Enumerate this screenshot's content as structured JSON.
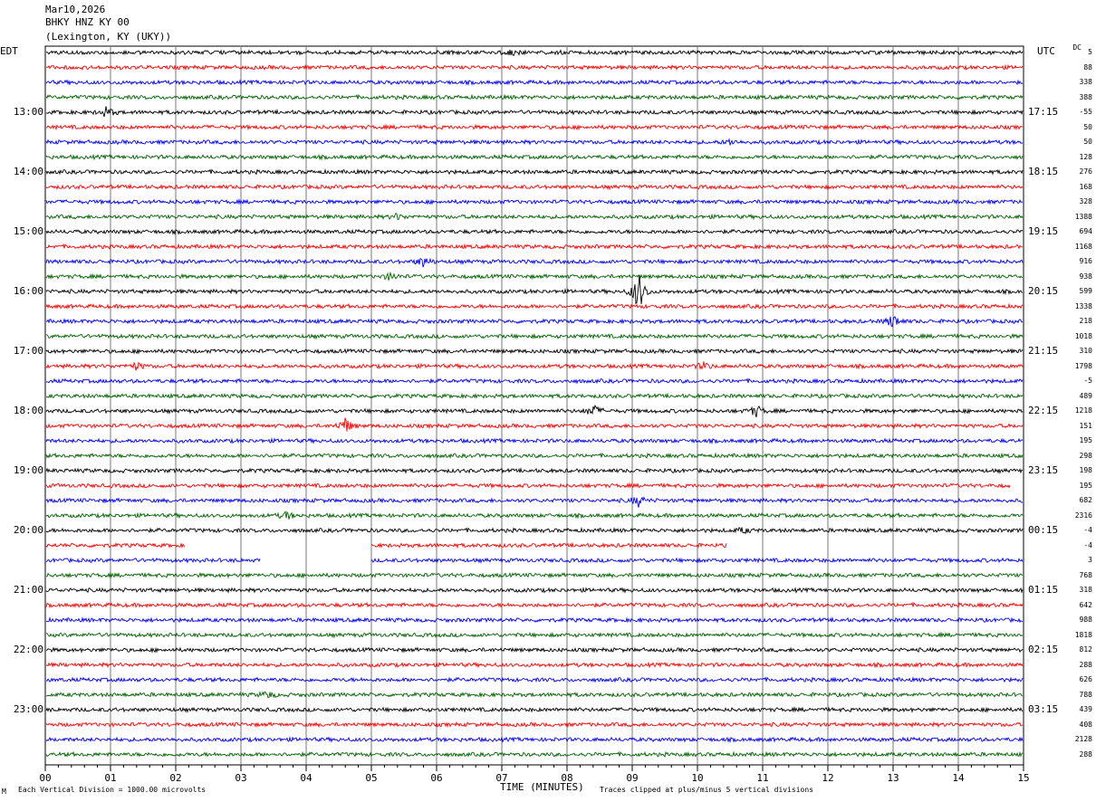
{
  "header": {
    "date": "Mar10,2026",
    "station": "BHKY HNZ KY 00",
    "location": "(Lexington, KY (UKY))"
  },
  "left_tz": "EDT",
  "right_tz": "UTC",
  "dc_label": "DC",
  "left_hour_labels": [
    "13:00",
    "14:00",
    "15:00",
    "16:00",
    "17:00",
    "18:00",
    "19:00",
    "20:00",
    "21:00",
    "22:00",
    "23:00"
  ],
  "right_hour_labels": [
    "17:15",
    "18:15",
    "19:15",
    "20:15",
    "21:15",
    "22:15",
    "23:15",
    "00:15",
    "01:15",
    "02:15",
    "03:15"
  ],
  "dc_offsets": [
    "5",
    "88",
    "338",
    "388",
    "-55",
    "50",
    "50",
    "128",
    "276",
    "168",
    "328",
    "1388",
    "694",
    "1168",
    "916",
    "938",
    "599",
    "1338",
    "218",
    "1018",
    "310",
    "1798",
    "-5",
    "489",
    "1218",
    "151",
    "195",
    "298",
    "198",
    "195",
    "682",
    "2316",
    "-4",
    "-4",
    "3",
    "768",
    "318",
    "642",
    "988",
    "1818",
    "812",
    "288",
    "626",
    "788",
    "439",
    "408",
    "2128",
    "288"
  ],
  "footer": {
    "scale": "Each Vertical Division = 1000.00 microvolts",
    "clip": "Traces clipped at plus/minus 5 vertical divisions",
    "corner": "M"
  },
  "chart_data": {
    "type": "line",
    "xlabel": "TIME (MINUTES)",
    "x_ticks": [
      "00",
      "01",
      "02",
      "03",
      "04",
      "05",
      "06",
      "07",
      "08",
      "09",
      "10",
      "11",
      "12",
      "13",
      "14",
      "15"
    ],
    "xlim": [
      0,
      15
    ],
    "trace_colors": [
      "#000000",
      "#ff0000",
      "#0000ff",
      "#006400"
    ],
    "num_traces": 48,
    "trace_minutes_each": 15,
    "grid": true,
    "gaps": [
      {
        "trace": 29,
        "from_min": 14.8,
        "to_min": 15
      },
      {
        "trace": 33,
        "from_min": 2.15,
        "to_min": 5.0
      },
      {
        "trace": 33,
        "from_min": 10.45,
        "to_min": 15
      },
      {
        "trace": 34,
        "from_min": 3.3,
        "to_min": 5.0
      }
    ],
    "events": [
      {
        "trace": 0,
        "minute": 7.2,
        "amp": 3
      },
      {
        "trace": 4,
        "minute": 0.95,
        "amp": 6
      },
      {
        "trace": 6,
        "minute": 10.5,
        "amp": 3
      },
      {
        "trace": 11,
        "minute": 5.4,
        "amp": 3
      },
      {
        "trace": 14,
        "minute": 5.8,
        "amp": 6
      },
      {
        "trace": 15,
        "minute": 5.3,
        "amp": 4
      },
      {
        "trace": 16,
        "minute": 9.1,
        "amp": 22
      },
      {
        "trace": 18,
        "minute": 13.0,
        "amp": 8
      },
      {
        "trace": 21,
        "minute": 1.4,
        "amp": 4
      },
      {
        "trace": 21,
        "minute": 10.1,
        "amp": 4
      },
      {
        "trace": 24,
        "minute": 8.4,
        "amp": 7
      },
      {
        "trace": 24,
        "minute": 10.9,
        "amp": 6
      },
      {
        "trace": 25,
        "minute": 4.6,
        "amp": 9
      },
      {
        "trace": 30,
        "minute": 9.1,
        "amp": 6
      },
      {
        "trace": 31,
        "minute": 3.7,
        "amp": 4
      },
      {
        "trace": 32,
        "minute": 10.7,
        "amp": 3
      },
      {
        "trace": 43,
        "minute": 3.4,
        "amp": 4
      }
    ]
  }
}
